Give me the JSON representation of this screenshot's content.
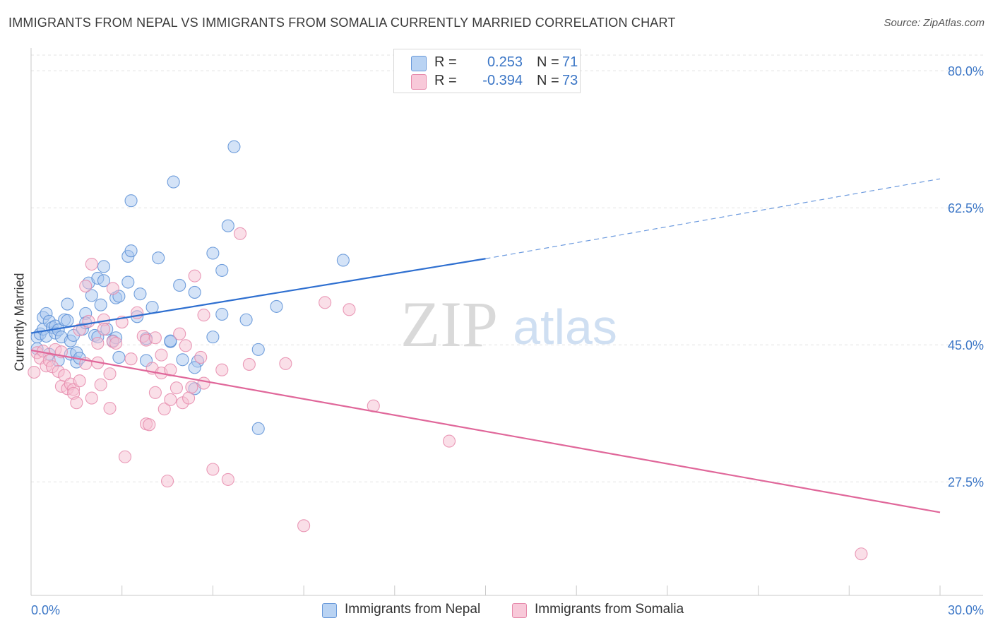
{
  "title": "IMMIGRANTS FROM NEPAL VS IMMIGRANTS FROM SOMALIA CURRENTLY MARRIED CORRELATION CHART",
  "source": "Source: ZipAtlas.com",
  "watermark": {
    "zip": "ZIP",
    "atlas": "atlas"
  },
  "legend": {
    "series": [
      {
        "r_label": "R =",
        "r_value": "0.253",
        "n_label": "N =",
        "n_value": "71"
      },
      {
        "r_label": "R =",
        "r_value": "-0.394",
        "n_label": "N =",
        "n_value": "73"
      }
    ]
  },
  "bottom_legend": [
    "Immigrants from Nepal",
    "Immigrants from Somalia"
  ],
  "colors": {
    "nepal_fill": "#a9c8ef",
    "nepal_stroke": "#5b8fd6",
    "nepal_line": "#2e6fd0",
    "somalia_fill": "#f6bfd2",
    "somalia_stroke": "#e68aab",
    "somalia_line": "#e0679a",
    "axis_label": "#3b76c6",
    "grid": "#e3e3e3"
  },
  "chart_data": {
    "type": "scatter",
    "title": "IMMIGRANTS FROM NEPAL VS IMMIGRANTS FROM SOMALIA CURRENTLY MARRIED CORRELATION CHART",
    "xlabel": "",
    "ylabel": "Currently Married",
    "xlim": [
      0,
      30
    ],
    "ylim": [
      13,
      82
    ],
    "x_tick_labels": [
      "0.0%",
      "30.0%"
    ],
    "y_ticks": [
      80.0,
      62.5,
      45.0,
      27.5
    ],
    "y_tick_labels": [
      "80.0%",
      "62.5%",
      "45.0%",
      "27.5%"
    ],
    "grid": true,
    "legend_position": "top-center",
    "series": [
      {
        "name": "Immigrants from Nepal",
        "points": [
          [
            0.2,
            44.5
          ],
          [
            0.2,
            46.0
          ],
          [
            0.3,
            46.4
          ],
          [
            0.4,
            48.5
          ],
          [
            0.4,
            47.0
          ],
          [
            0.5,
            46.1
          ],
          [
            0.5,
            49.0
          ],
          [
            0.6,
            48.0
          ],
          [
            0.6,
            43.8
          ],
          [
            0.7,
            47.2
          ],
          [
            0.8,
            47.4
          ],
          [
            0.8,
            46.5
          ],
          [
            0.9,
            46.9
          ],
          [
            0.9,
            43.0
          ],
          [
            1.0,
            46.0
          ],
          [
            1.1,
            48.2
          ],
          [
            1.2,
            48.1
          ],
          [
            1.3,
            43.8
          ],
          [
            1.3,
            45.5
          ],
          [
            1.4,
            46.2
          ],
          [
            1.2,
            50.2
          ],
          [
            1.5,
            44.0
          ],
          [
            1.5,
            42.8
          ],
          [
            1.6,
            43.3
          ],
          [
            1.7,
            47.0
          ],
          [
            1.8,
            49.0
          ],
          [
            1.8,
            47.8
          ],
          [
            1.9,
            52.9
          ],
          [
            2.0,
            51.3
          ],
          [
            2.1,
            46.2
          ],
          [
            2.2,
            46.0
          ],
          [
            2.2,
            53.5
          ],
          [
            2.3,
            50.1
          ],
          [
            2.4,
            53.2
          ],
          [
            2.5,
            47.0
          ],
          [
            2.7,
            45.5
          ],
          [
            2.8,
            45.9
          ],
          [
            2.8,
            51.0
          ],
          [
            2.9,
            51.2
          ],
          [
            2.9,
            43.4
          ],
          [
            3.2,
            56.3
          ],
          [
            3.3,
            57.0
          ],
          [
            3.3,
            63.4
          ],
          [
            3.5,
            48.6
          ],
          [
            3.6,
            51.5
          ],
          [
            3.8,
            45.8
          ],
          [
            3.8,
            43.0
          ],
          [
            4.0,
            49.8
          ],
          [
            4.6,
            45.4
          ],
          [
            4.7,
            65.8
          ],
          [
            4.9,
            52.6
          ],
          [
            5.0,
            43.1
          ],
          [
            5.4,
            51.7
          ],
          [
            5.4,
            39.4
          ],
          [
            5.5,
            42.9
          ],
          [
            6.0,
            46.0
          ],
          [
            5.4,
            42.1
          ],
          [
            6.0,
            56.7
          ],
          [
            6.3,
            48.9
          ],
          [
            6.3,
            54.5
          ],
          [
            6.5,
            60.2
          ],
          [
            6.7,
            70.3
          ],
          [
            7.1,
            48.2
          ],
          [
            7.5,
            34.3
          ],
          [
            7.5,
            44.4
          ],
          [
            8.1,
            49.9
          ],
          [
            4.6,
            45.5
          ],
          [
            4.2,
            56.1
          ],
          [
            10.3,
            55.8
          ],
          [
            3.2,
            53.0
          ],
          [
            2.4,
            55.0
          ]
        ]
      },
      {
        "name": "Immigrants from Somalia",
        "points": [
          [
            0.1,
            41.5
          ],
          [
            0.2,
            44.0
          ],
          [
            0.3,
            43.3
          ],
          [
            0.4,
            44.2
          ],
          [
            0.5,
            42.3
          ],
          [
            0.6,
            43.0
          ],
          [
            0.7,
            42.2
          ],
          [
            0.8,
            44.4
          ],
          [
            0.9,
            41.6
          ],
          [
            1.0,
            39.7
          ],
          [
            1.0,
            44.1
          ],
          [
            1.1,
            41.1
          ],
          [
            1.2,
            39.4
          ],
          [
            1.3,
            40.0
          ],
          [
            1.4,
            39.3
          ],
          [
            1.4,
            38.8
          ],
          [
            1.5,
            37.6
          ],
          [
            1.6,
            40.4
          ],
          [
            1.6,
            46.9
          ],
          [
            1.8,
            42.6
          ],
          [
            1.8,
            52.5
          ],
          [
            1.9,
            48.0
          ],
          [
            2.0,
            38.2
          ],
          [
            2.0,
            55.3
          ],
          [
            2.2,
            42.7
          ],
          [
            2.2,
            45.2
          ],
          [
            2.3,
            39.9
          ],
          [
            2.4,
            48.2
          ],
          [
            2.4,
            47.0
          ],
          [
            2.6,
            36.9
          ],
          [
            2.6,
            41.3
          ],
          [
            2.7,
            45.4
          ],
          [
            2.7,
            52.2
          ],
          [
            2.8,
            45.2
          ],
          [
            3.0,
            47.9
          ],
          [
            3.1,
            30.7
          ],
          [
            3.3,
            43.2
          ],
          [
            3.5,
            49.1
          ],
          [
            3.7,
            46.1
          ],
          [
            3.8,
            34.9
          ],
          [
            3.8,
            45.6
          ],
          [
            3.9,
            34.8
          ],
          [
            4.0,
            42.0
          ],
          [
            4.1,
            38.9
          ],
          [
            4.1,
            45.9
          ],
          [
            4.3,
            41.4
          ],
          [
            4.3,
            43.7
          ],
          [
            4.4,
            36.8
          ],
          [
            4.5,
            27.6
          ],
          [
            4.6,
            38.0
          ],
          [
            4.6,
            41.8
          ],
          [
            4.8,
            39.5
          ],
          [
            4.9,
            46.4
          ],
          [
            5.0,
            37.6
          ],
          [
            5.1,
            44.9
          ],
          [
            5.2,
            38.2
          ],
          [
            5.3,
            39.6
          ],
          [
            5.4,
            53.8
          ],
          [
            5.6,
            43.4
          ],
          [
            5.7,
            48.8
          ],
          [
            5.7,
            40.1
          ],
          [
            6.0,
            29.1
          ],
          [
            6.3,
            41.8
          ],
          [
            6.5,
            27.8
          ],
          [
            6.9,
            59.2
          ],
          [
            7.2,
            42.5
          ],
          [
            8.4,
            42.6
          ],
          [
            9.0,
            21.9
          ],
          [
            9.7,
            50.4
          ],
          [
            10.5,
            49.5
          ],
          [
            11.3,
            37.2
          ],
          [
            13.8,
            32.7
          ],
          [
            27.4,
            18.3
          ]
        ]
      }
    ],
    "trendlines": [
      {
        "series": "Immigrants from Nepal",
        "solid": [
          [
            0.0,
            46.5
          ],
          [
            15.0,
            56.0
          ]
        ],
        "dashed": [
          [
            15.0,
            56.0
          ],
          [
            30.0,
            66.2
          ]
        ]
      },
      {
        "series": "Immigrants from Somalia",
        "solid": [
          [
            0.0,
            44.3
          ],
          [
            30.0,
            23.6
          ]
        ]
      }
    ]
  }
}
